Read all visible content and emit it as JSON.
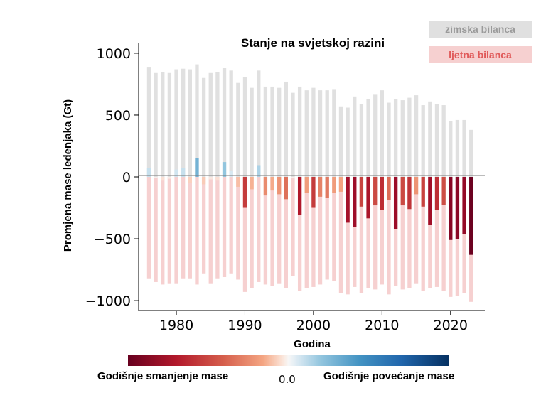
{
  "legend": {
    "winter_label": "zimska bilanca",
    "summer_label": "ljetna bilanca",
    "winter_color": "#e0e0e0",
    "summer_color": "#f6d0d0"
  },
  "colorbar": {
    "left_label": "Godišnje smanjenje mase",
    "center_label": "0.0",
    "right_label": "Godišnje povećanje mase",
    "colors": [
      "#67001f",
      "#b2182b",
      "#d6604d",
      "#f4a582",
      "#f7f7f7",
      "#92c5de",
      "#4393c3",
      "#2166ac",
      "#053061"
    ]
  },
  "chart_data": {
    "type": "bar",
    "title": "Stanje na svjetskoj razini",
    "xlabel": "Godina",
    "ylabel": "Promjena mase ledenjaka (Gt)",
    "xlim": [
      1974.5,
      2025
    ],
    "ylim": [
      -1080,
      1080
    ],
    "xticks": [
      1980,
      1990,
      2000,
      2010,
      2020
    ],
    "yticks": [
      1000,
      500,
      0,
      -500,
      -1000
    ],
    "ytick_labels": [
      "1000",
      "500",
      "0",
      "−500",
      "−1000"
    ],
    "grid": false,
    "legend_position": "top-right",
    "years": [
      1976,
      1977,
      1978,
      1979,
      1980,
      1981,
      1982,
      1983,
      1984,
      1985,
      1986,
      1987,
      1988,
      1989,
      1990,
      1991,
      1992,
      1993,
      1994,
      1995,
      1996,
      1997,
      1998,
      1999,
      2000,
      2001,
      2002,
      2003,
      2004,
      2005,
      2006,
      2007,
      2008,
      2009,
      2010,
      2011,
      2012,
      2013,
      2014,
      2015,
      2016,
      2017,
      2018,
      2019,
      2020,
      2021,
      2022,
      2023
    ],
    "series": [
      {
        "name": "zimska bilanca",
        "values": [
          890,
          840,
          845,
          840,
          870,
          875,
          870,
          910,
          800,
          840,
          850,
          880,
          860,
          760,
          810,
          720,
          860,
          730,
          730,
          720,
          770,
          680,
          730,
          700,
          720,
          700,
          700,
          710,
          570,
          560,
          650,
          590,
          630,
          670,
          700,
          600,
          630,
          620,
          640,
          660,
          580,
          610,
          590,
          580,
          450,
          460,
          460,
          380
        ]
      },
      {
        "name": "ljetna bilanca",
        "values": [
          -820,
          -850,
          -870,
          -860,
          -860,
          -820,
          -820,
          -870,
          -780,
          -860,
          -820,
          -810,
          -780,
          -830,
          -930,
          -900,
          -850,
          -870,
          -880,
          -860,
          -900,
          -800,
          -920,
          -900,
          -890,
          -870,
          -830,
          -840,
          -940,
          -950,
          -890,
          -940,
          -900,
          -910,
          -870,
          -950,
          -880,
          -910,
          -900,
          -860,
          -920,
          -900,
          -890,
          -920,
          -970,
          -960,
          -940,
          -1010
        ]
      },
      {
        "name": "",
        "values": [
          70,
          -10,
          -30,
          -15,
          60,
          70,
          -50,
          150,
          -60,
          -20,
          -30,
          120,
          50,
          -80,
          -250,
          -100,
          95,
          -150,
          -110,
          -140,
          -180,
          -10,
          -305,
          -130,
          -250,
          -160,
          -170,
          -130,
          -120,
          -370,
          -405,
          -240,
          -335,
          -230,
          -270,
          -185,
          -420,
          -230,
          -260,
          -140,
          -240,
          -385,
          -270,
          -225,
          -510,
          -500,
          -460,
          -630
        ]
      }
    ]
  }
}
